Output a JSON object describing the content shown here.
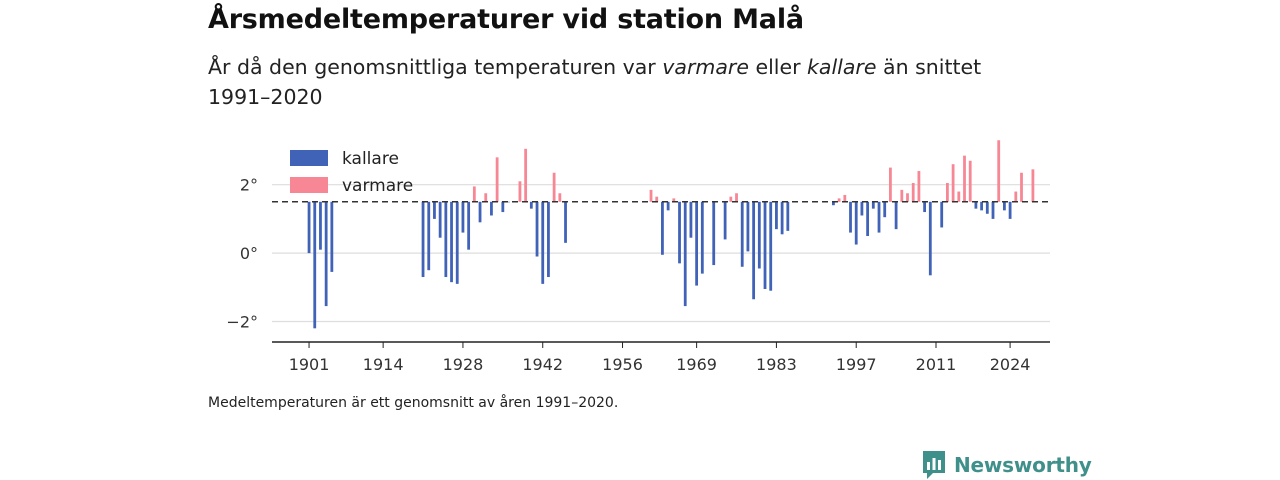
{
  "header": {
    "title": "Årsmedeltemperaturer vid station Malå",
    "subtitle_pre": "År då den genomsnittliga temperaturen var ",
    "subtitle_warm": "varmare",
    "subtitle_mid": " eller ",
    "subtitle_cold": "kallare",
    "subtitle_post": " än snittet 1991–2020"
  },
  "footer": {
    "note": "Medeltemperaturen är ett genomsnitt av åren 1991–2020.",
    "brand": "Newsworthy"
  },
  "colors": {
    "cold": "#4063b8",
    "warm": "#f78794",
    "brand": "#3f8f8a"
  },
  "chart_data": {
    "type": "bar",
    "baseline": 1.5,
    "ylim": [
      -2.6,
      3.6
    ],
    "yticks": [
      -2,
      0,
      2
    ],
    "ytick_labels": [
      "−2°",
      "0°",
      "2°"
    ],
    "xlim": [
      1894.5,
      2031
    ],
    "xticks": [
      1901,
      1914,
      1928,
      1942,
      1956,
      1969,
      1983,
      1997,
      2011,
      2024
    ],
    "xtick_labels": [
      "1901",
      "1914",
      "1928",
      "1942",
      "1956",
      "1969",
      "1983",
      "1997",
      "2011",
      "2024"
    ],
    "grid": true,
    "legend": {
      "position": "top-left",
      "items": [
        {
          "label": "kallare",
          "color": "#4063b8"
        },
        {
          "label": "varmare",
          "color": "#f78794"
        }
      ]
    },
    "series": [
      {
        "name": "kallare",
        "x": [
          1901,
          1902,
          1903,
          1904,
          1905,
          1921,
          1922,
          1923,
          1924,
          1925,
          1926,
          1927,
          1928,
          1929,
          1931,
          1933,
          1935,
          1936,
          1940,
          1941,
          1942,
          1943,
          1946,
          1963,
          1964,
          1966,
          1967,
          1968,
          1969,
          1970,
          1972,
          1974,
          1977,
          1978,
          1979,
          1980,
          1981,
          1982,
          1983,
          1984,
          1985,
          1993,
          1996,
          1997,
          1998,
          1999,
          2000,
          2001,
          2002,
          2004,
          2009,
          2010,
          2012,
          2018,
          2019,
          2020,
          2021,
          2023,
          2024
        ],
        "values": [
          0.0,
          -2.2,
          0.1,
          -1.55,
          -0.55,
          -0.7,
          -0.5,
          1.0,
          0.45,
          -0.7,
          -0.85,
          -0.9,
          0.6,
          0.1,
          0.9,
          1.1,
          1.2,
          1.5,
          1.3,
          -0.1,
          -0.9,
          -0.7,
          0.3,
          -0.05,
          1.25,
          -0.3,
          -1.55,
          0.45,
          -0.95,
          -0.6,
          -0.35,
          0.4,
          -0.4,
          0.05,
          -1.35,
          -0.45,
          -1.05,
          -1.1,
          0.7,
          0.55,
          0.65,
          1.4,
          0.6,
          0.25,
          1.1,
          0.5,
          1.3,
          0.6,
          1.05,
          0.7,
          1.2,
          -0.65,
          0.75,
          1.3,
          1.25,
          1.15,
          1.0,
          1.25,
          1.0
        ]
      },
      {
        "name": "varmare",
        "x": [
          1930,
          1932,
          1934,
          1938,
          1939,
          1944,
          1945,
          1961,
          1962,
          1965,
          1975,
          1976,
          1994,
          1995,
          2003,
          2005,
          2006,
          2007,
          2008,
          2013,
          2014,
          2015,
          2016,
          2017,
          2022,
          2025,
          2026,
          2028
        ],
        "values": [
          1.95,
          1.75,
          2.8,
          2.1,
          3.05,
          2.35,
          1.75,
          1.85,
          1.65,
          1.6,
          1.65,
          1.75,
          1.6,
          1.7,
          2.5,
          1.85,
          1.75,
          2.05,
          2.4,
          2.05,
          2.6,
          1.8,
          2.85,
          2.7,
          3.3,
          1.8,
          2.35,
          2.45
        ]
      }
    ]
  }
}
